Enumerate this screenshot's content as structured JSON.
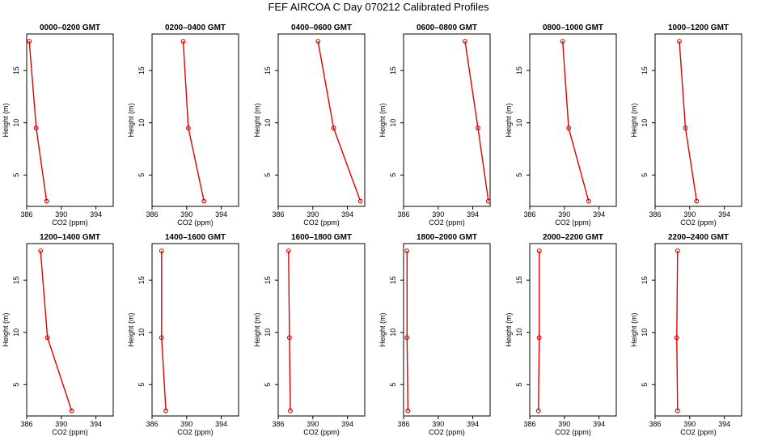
{
  "title": "FEF AIRCOA C  Day 070212  Calibrated Profiles",
  "colors": {
    "series": "#e00000",
    "axis": "#000000"
  },
  "chart_data": [
    {
      "type": "line",
      "title": "0000–0200 GMT",
      "xlabel": "CO2 (ppm)",
      "ylabel": "Height (m)",
      "xlim": [
        386,
        396
      ],
      "ylim": [
        2,
        18.5
      ],
      "xticks": [
        "386",
        "390",
        "394"
      ],
      "yticks": [
        "5",
        "10",
        "15"
      ],
      "x": [
        386.3,
        387.1,
        388.3
      ],
      "y": [
        17.8,
        9.5,
        2.5
      ]
    },
    {
      "type": "line",
      "title": "0200–0400 GMT",
      "xlabel": "CO2 (ppm)",
      "ylabel": "Height (m)",
      "xlim": [
        386,
        396
      ],
      "ylim": [
        2,
        18.5
      ],
      "xticks": [
        "386",
        "390",
        "394"
      ],
      "yticks": [
        "5",
        "10",
        "15"
      ],
      "x": [
        389.6,
        390.2,
        392.0
      ],
      "y": [
        17.8,
        9.5,
        2.5
      ]
    },
    {
      "type": "line",
      "title": "0400–0600 GMT",
      "xlabel": "CO2 (ppm)",
      "ylabel": "Height (m)",
      "xlim": [
        386,
        396
      ],
      "ylim": [
        2,
        18.5
      ],
      "xticks": [
        "386",
        "390",
        "394"
      ],
      "yticks": [
        "5",
        "10",
        "15"
      ],
      "x": [
        390.6,
        392.4,
        395.5
      ],
      "y": [
        17.8,
        9.5,
        2.5
      ]
    },
    {
      "type": "line",
      "title": "0600–0800 GMT",
      "xlabel": "CO2 (ppm)",
      "ylabel": "Height (m)",
      "xlim": [
        386,
        396
      ],
      "ylim": [
        2,
        18.5
      ],
      "xticks": [
        "386",
        "390",
        "394"
      ],
      "yticks": [
        "5",
        "10",
        "15"
      ],
      "x": [
        393.1,
        394.6,
        395.8
      ],
      "y": [
        17.8,
        9.5,
        2.5
      ]
    },
    {
      "type": "line",
      "title": "0800–1000 GMT",
      "xlabel": "CO2 (ppm)",
      "ylabel": "Height (m)",
      "xlim": [
        386,
        396
      ],
      "ylim": [
        2,
        18.5
      ],
      "xticks": [
        "386",
        "390",
        "394"
      ],
      "yticks": [
        "5",
        "10",
        "15"
      ],
      "x": [
        389.8,
        390.5,
        392.8
      ],
      "y": [
        17.8,
        9.5,
        2.5
      ]
    },
    {
      "type": "line",
      "title": "1000–1200 GMT",
      "xlabel": "CO2 (ppm)",
      "ylabel": "Height (m)",
      "xlim": [
        386,
        396
      ],
      "ylim": [
        2,
        18.5
      ],
      "xticks": [
        "386",
        "390",
        "394"
      ],
      "yticks": [
        "5",
        "10",
        "15"
      ],
      "x": [
        388.8,
        389.5,
        390.8
      ],
      "y": [
        17.8,
        9.5,
        2.5
      ]
    },
    {
      "type": "line",
      "title": "1200–1400 GMT",
      "xlabel": "CO2 (ppm)",
      "ylabel": "Height (m)",
      "xlim": [
        386,
        396
      ],
      "ylim": [
        2,
        18.5
      ],
      "xticks": [
        "386",
        "390",
        "394"
      ],
      "yticks": [
        "5",
        "10",
        "15"
      ],
      "x": [
        387.6,
        388.4,
        391.2
      ],
      "y": [
        17.8,
        9.5,
        2.5
      ]
    },
    {
      "type": "line",
      "title": "1400–1600 GMT",
      "xlabel": "CO2 (ppm)",
      "ylabel": "Height (m)",
      "xlim": [
        386,
        396
      ],
      "ylim": [
        2,
        18.5
      ],
      "xticks": [
        "386",
        "390",
        "394"
      ],
      "yticks": [
        "5",
        "10",
        "15"
      ],
      "x": [
        387.1,
        387.1,
        387.6
      ],
      "y": [
        17.8,
        9.5,
        2.5
      ]
    },
    {
      "type": "line",
      "title": "1600–1800 GMT",
      "xlabel": "CO2 (ppm)",
      "ylabel": "Height (m)",
      "xlim": [
        386,
        396
      ],
      "ylim": [
        2,
        18.5
      ],
      "xticks": [
        "386",
        "390",
        "394"
      ],
      "yticks": [
        "5",
        "10",
        "15"
      ],
      "x": [
        387.2,
        387.3,
        387.4
      ],
      "y": [
        17.8,
        9.5,
        2.5
      ]
    },
    {
      "type": "line",
      "title": "1800–2000 GMT",
      "xlabel": "CO2 (ppm)",
      "ylabel": "Height (m)",
      "xlim": [
        386,
        396
      ],
      "ylim": [
        2,
        18.5
      ],
      "xticks": [
        "386",
        "390",
        "394"
      ],
      "yticks": [
        "5",
        "10",
        "15"
      ],
      "x": [
        386.4,
        386.4,
        386.5
      ],
      "y": [
        17.8,
        9.5,
        2.5
      ]
    },
    {
      "type": "line",
      "title": "2000–2200 GMT",
      "xlabel": "CO2 (ppm)",
      "ylabel": "Height (m)",
      "xlim": [
        386,
        396
      ],
      "ylim": [
        2,
        18.5
      ],
      "xticks": [
        "386",
        "390",
        "394"
      ],
      "yticks": [
        "5",
        "10",
        "15"
      ],
      "x": [
        387.1,
        387.1,
        387.0
      ],
      "y": [
        17.8,
        9.5,
        2.5
      ]
    },
    {
      "type": "line",
      "title": "2200–2400 GMT",
      "xlabel": "CO2 (ppm)",
      "ylabel": "Height (m)",
      "xlim": [
        386,
        396
      ],
      "ylim": [
        2,
        18.5
      ],
      "xticks": [
        "386",
        "390",
        "394"
      ],
      "yticks": [
        "5",
        "10",
        "15"
      ],
      "x": [
        388.6,
        388.5,
        388.6
      ],
      "y": [
        17.8,
        9.5,
        2.5
      ]
    }
  ]
}
